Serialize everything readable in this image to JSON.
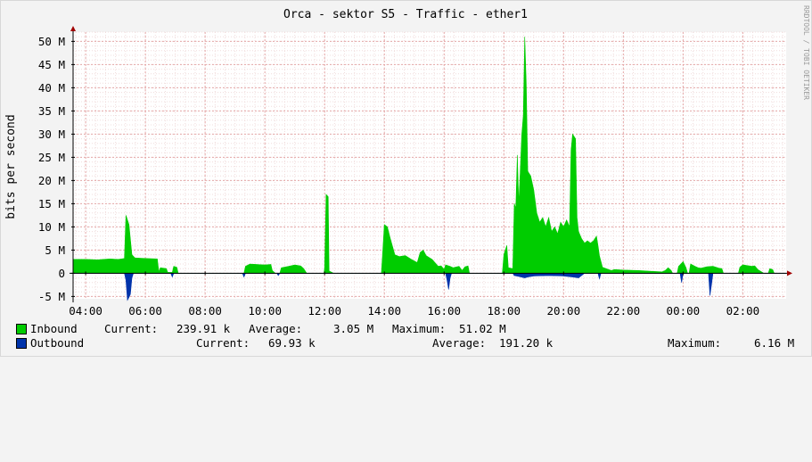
{
  "chart_data": {
    "type": "area",
    "title": "Orca - sektor S5 - Traffic - ether1",
    "ylabel": "bits per second",
    "watermark": "RRDTOOL / TOBI OETIKER",
    "ylim": [
      -5.5,
      52
    ],
    "yticks": [
      {
        "v": -5,
        "label": "-5 M"
      },
      {
        "v": 0,
        "label": "0"
      },
      {
        "v": 5,
        "label": "5 M"
      },
      {
        "v": 10,
        "label": "10 M"
      },
      {
        "v": 15,
        "label": "15 M"
      },
      {
        "v": 20,
        "label": "20 M"
      },
      {
        "v": 25,
        "label": "25 M"
      },
      {
        "v": 30,
        "label": "30 M"
      },
      {
        "v": 35,
        "label": "35 M"
      },
      {
        "v": 40,
        "label": "40 M"
      },
      {
        "v": 45,
        "label": "45 M"
      },
      {
        "v": 50,
        "label": "50 M"
      }
    ],
    "xlim": [
      3.58,
      27.45
    ],
    "xticks": [
      {
        "v": 4,
        "label": "04:00"
      },
      {
        "v": 6,
        "label": "06:00"
      },
      {
        "v": 8,
        "label": "08:00"
      },
      {
        "v": 10,
        "label": "10:00"
      },
      {
        "v": 12,
        "label": "12:00"
      },
      {
        "v": 14,
        "label": "14:00"
      },
      {
        "v": 16,
        "label": "16:00"
      },
      {
        "v": 18,
        "label": "18:00"
      },
      {
        "v": 20,
        "label": "20:00"
      },
      {
        "v": 22,
        "label": "22:00"
      },
      {
        "v": 24,
        "label": "00:00"
      },
      {
        "v": 26,
        "label": "02:00"
      }
    ],
    "series": [
      {
        "name": "Inbound",
        "color": "#00cc00",
        "points": [
          [
            3.58,
            0
          ],
          [
            3.6,
            3.0
          ],
          [
            4.0,
            3.0
          ],
          [
            4.4,
            2.9
          ],
          [
            4.8,
            3.1
          ],
          [
            5.1,
            3.0
          ],
          [
            5.3,
            3.2
          ],
          [
            5.35,
            12.5
          ],
          [
            5.45,
            10.5
          ],
          [
            5.55,
            4.0
          ],
          [
            5.65,
            3.3
          ],
          [
            6.0,
            3.2
          ],
          [
            6.4,
            3.1
          ],
          [
            6.45,
            0.3
          ],
          [
            6.5,
            1.2
          ],
          [
            6.7,
            1.0
          ],
          [
            6.75,
            0.2
          ],
          [
            6.9,
            0.2
          ],
          [
            6.95,
            1.5
          ],
          [
            7.05,
            1.3
          ],
          [
            7.1,
            0
          ],
          [
            9.3,
            0
          ],
          [
            9.35,
            1.5
          ],
          [
            9.5,
            2.0
          ],
          [
            10.0,
            1.8
          ],
          [
            10.2,
            1.9
          ],
          [
            10.25,
            0.6
          ],
          [
            10.35,
            0
          ],
          [
            10.5,
            0
          ],
          [
            10.55,
            1.2
          ],
          [
            10.8,
            1.5
          ],
          [
            11.0,
            1.8
          ],
          [
            11.2,
            1.6
          ],
          [
            11.3,
            1.0
          ],
          [
            11.4,
            0
          ],
          [
            11.98,
            0
          ],
          [
            12.0,
            1.2
          ],
          [
            12.05,
            17.0
          ],
          [
            12.12,
            16.5
          ],
          [
            12.15,
            0.5
          ],
          [
            12.3,
            0
          ],
          [
            13.9,
            0
          ],
          [
            13.95,
            5.0
          ],
          [
            14.0,
            10.5
          ],
          [
            14.1,
            10.0
          ],
          [
            14.2,
            7.5
          ],
          [
            14.35,
            4.0
          ],
          [
            14.5,
            3.6
          ],
          [
            14.7,
            3.8
          ],
          [
            14.9,
            3.0
          ],
          [
            15.1,
            2.3
          ],
          [
            15.2,
            4.5
          ],
          [
            15.3,
            5.0
          ],
          [
            15.4,
            3.8
          ],
          [
            15.6,
            3.0
          ],
          [
            15.8,
            1.5
          ],
          [
            15.9,
            1.6
          ],
          [
            16.0,
            0.8
          ],
          [
            16.05,
            1.8
          ],
          [
            16.2,
            1.5
          ],
          [
            16.3,
            1.2
          ],
          [
            16.5,
            1.5
          ],
          [
            16.6,
            0.6
          ],
          [
            16.7,
            1.4
          ],
          [
            16.8,
            1.6
          ],
          [
            16.85,
            0
          ],
          [
            17.95,
            0
          ],
          [
            18.0,
            4.0
          ],
          [
            18.1,
            6.0
          ],
          [
            18.15,
            1.2
          ],
          [
            18.3,
            1.0
          ],
          [
            18.35,
            15.0
          ],
          [
            18.4,
            14.0
          ],
          [
            18.45,
            25.5
          ],
          [
            18.5,
            15.0
          ],
          [
            18.55,
            22.0
          ],
          [
            18.6,
            30.0
          ],
          [
            18.65,
            34.0
          ],
          [
            18.7,
            51.0
          ],
          [
            18.75,
            41.0
          ],
          [
            18.8,
            22.0
          ],
          [
            18.9,
            21.0
          ],
          [
            19.0,
            18.0
          ],
          [
            19.1,
            13.0
          ],
          [
            19.2,
            11.0
          ],
          [
            19.3,
            12.0
          ],
          [
            19.4,
            10.0
          ],
          [
            19.5,
            12.0
          ],
          [
            19.6,
            9.0
          ],
          [
            19.7,
            10.0
          ],
          [
            19.8,
            8.5
          ],
          [
            19.9,
            11.0
          ],
          [
            20.0,
            10.0
          ],
          [
            20.1,
            11.5
          ],
          [
            20.2,
            10.0
          ],
          [
            20.25,
            26.5
          ],
          [
            20.3,
            30.0
          ],
          [
            20.4,
            29.0
          ],
          [
            20.45,
            12.0
          ],
          [
            20.5,
            9.0
          ],
          [
            20.6,
            7.5
          ],
          [
            20.7,
            6.5
          ],
          [
            20.8,
            7.0
          ],
          [
            20.9,
            6.5
          ],
          [
            21.0,
            7.0
          ],
          [
            21.1,
            8.0
          ],
          [
            21.15,
            6.0
          ],
          [
            21.2,
            3.8
          ],
          [
            21.3,
            1.3
          ],
          [
            21.5,
            0.8
          ],
          [
            21.6,
            0.6
          ],
          [
            21.7,
            0.8
          ],
          [
            22.0,
            0.7
          ],
          [
            22.5,
            0.6
          ],
          [
            23.0,
            0.4
          ],
          [
            23.3,
            0.3
          ],
          [
            23.4,
            0.6
          ],
          [
            23.5,
            1.2
          ],
          [
            23.6,
            0.6
          ],
          [
            23.65,
            0
          ],
          [
            23.8,
            0
          ],
          [
            23.85,
            1.5
          ],
          [
            24.0,
            2.5
          ],
          [
            24.1,
            1.2
          ],
          [
            24.15,
            0
          ],
          [
            24.2,
            0
          ],
          [
            24.25,
            2.0
          ],
          [
            24.4,
            1.5
          ],
          [
            24.5,
            1.2
          ],
          [
            24.6,
            1.1
          ],
          [
            24.8,
            1.4
          ],
          [
            25.0,
            1.5
          ],
          [
            25.2,
            1.1
          ],
          [
            25.3,
            1.0
          ],
          [
            25.35,
            0
          ],
          [
            25.85,
            0
          ],
          [
            25.9,
            1.3
          ],
          [
            26.0,
            1.8
          ],
          [
            26.3,
            1.5
          ],
          [
            26.4,
            1.6
          ],
          [
            26.5,
            0.8
          ],
          [
            26.6,
            0.4
          ],
          [
            26.7,
            0
          ],
          [
            26.85,
            0
          ],
          [
            26.9,
            1.0
          ],
          [
            27.0,
            0.8
          ],
          [
            27.05,
            0
          ],
          [
            27.45,
            0
          ]
        ]
      },
      {
        "name": "Outbound",
        "color": "#0033aa",
        "points": [
          [
            3.58,
            0
          ],
          [
            5.3,
            0
          ],
          [
            5.35,
            -1.5
          ],
          [
            5.4,
            -5.8
          ],
          [
            5.45,
            -5.2
          ],
          [
            5.5,
            -4.5
          ],
          [
            5.55,
            -1.0
          ],
          [
            5.6,
            0
          ],
          [
            6.85,
            0
          ],
          [
            6.9,
            -0.8
          ],
          [
            6.95,
            0
          ],
          [
            9.25,
            0
          ],
          [
            9.3,
            -0.8
          ],
          [
            9.35,
            0
          ],
          [
            10.4,
            0
          ],
          [
            10.45,
            -0.5
          ],
          [
            10.5,
            0
          ],
          [
            16.05,
            0
          ],
          [
            16.1,
            -1.5
          ],
          [
            16.15,
            -3.5
          ],
          [
            16.2,
            -1.0
          ],
          [
            16.25,
            0
          ],
          [
            18.3,
            0
          ],
          [
            18.35,
            -0.5
          ],
          [
            18.5,
            -0.7
          ],
          [
            18.7,
            -1.0
          ],
          [
            18.8,
            -0.8
          ],
          [
            19.0,
            -0.6
          ],
          [
            19.5,
            -0.5
          ],
          [
            20.0,
            -0.6
          ],
          [
            20.3,
            -0.8
          ],
          [
            20.5,
            -1.0
          ],
          [
            20.6,
            -0.5
          ],
          [
            20.7,
            0
          ],
          [
            21.15,
            0
          ],
          [
            21.2,
            -1.2
          ],
          [
            21.25,
            0
          ],
          [
            23.9,
            0
          ],
          [
            23.95,
            -2.0
          ],
          [
            24.0,
            0
          ],
          [
            24.85,
            0
          ],
          [
            24.9,
            -4.8
          ],
          [
            24.95,
            -2.5
          ],
          [
            25.0,
            0
          ],
          [
            27.45,
            0
          ]
        ]
      }
    ]
  },
  "legend": [
    {
      "name": "Inbound",
      "color": "#00cc00",
      "current_label": "Current:",
      "current_value": "239.91 k",
      "average_label": "Average:",
      "average_value": "3.05 M",
      "maximum_label": "Maximum:",
      "maximum_value": "51.02 M"
    },
    {
      "name": "Outbound",
      "color": "#0033aa",
      "current_label": "Current:",
      "current_value": "69.93 k",
      "average_label": "Average:",
      "average_value": "191.20 k",
      "maximum_label": "Maximum:",
      "maximum_value": "6.16 M"
    }
  ]
}
